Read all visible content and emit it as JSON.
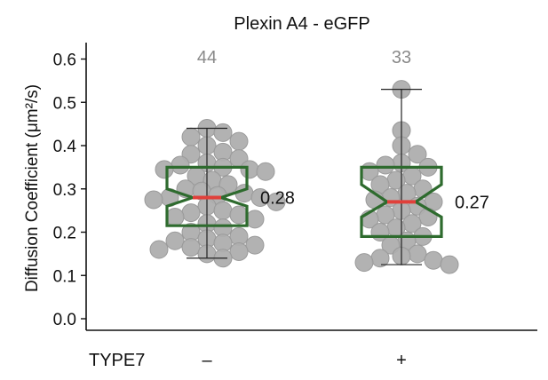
{
  "chart_data": {
    "type": "box",
    "title": "Plexin A4 - eGFP",
    "ylabel": "Diffusion Coefficient (μm²/s)",
    "xlabel": "TYPE7",
    "ylim": [
      0,
      0.65
    ],
    "yticks": [
      "0.0",
      "0.1",
      "0.2",
      "0.3",
      "0.4",
      "0.5",
      "0.6"
    ],
    "ytick_values": [
      0,
      0.1,
      0.2,
      0.3,
      0.4,
      0.5,
      0.6
    ],
    "grid": false,
    "categories": [
      "–",
      "+"
    ],
    "groups": [
      {
        "category": "–",
        "n_label": "44",
        "median_label": "0.28",
        "median": 0.28,
        "q1": 0.215,
        "q3": 0.35,
        "notch_low": 0.26,
        "notch_high": 0.3,
        "whisker_low": 0.14,
        "whisker_high": 0.44,
        "points": [
          0.44,
          0.43,
          0.42,
          0.41,
          0.4,
          0.385,
          0.38,
          0.37,
          0.36,
          0.355,
          0.35,
          0.345,
          0.345,
          0.34,
          0.33,
          0.32,
          0.31,
          0.3,
          0.295,
          0.29,
          0.285,
          0.28,
          0.28,
          0.275,
          0.27,
          0.26,
          0.25,
          0.245,
          0.24,
          0.235,
          0.23,
          0.22,
          0.21,
          0.2,
          0.19,
          0.185,
          0.18,
          0.175,
          0.17,
          0.165,
          0.16,
          0.155,
          0.15,
          0.14
        ]
      },
      {
        "category": "+",
        "n_label": "33",
        "median_label": "0.27",
        "median": 0.27,
        "q1": 0.19,
        "q3": 0.35,
        "notch_low": 0.235,
        "notch_high": 0.31,
        "whisker_low": 0.125,
        "whisker_high": 0.53,
        "points": [
          0.53,
          0.435,
          0.4,
          0.38,
          0.36,
          0.355,
          0.35,
          0.34,
          0.33,
          0.32,
          0.31,
          0.3,
          0.29,
          0.28,
          0.275,
          0.27,
          0.26,
          0.25,
          0.24,
          0.235,
          0.23,
          0.22,
          0.21,
          0.2,
          0.19,
          0.18,
          0.17,
          0.15,
          0.145,
          0.14,
          0.135,
          0.13,
          0.125
        ]
      }
    ],
    "colors": {
      "point_fill": "#aeaeae",
      "point_stroke": "#9a9a9a",
      "box": "#2e6b2e",
      "median": "#e0403a",
      "whisker": "#222222",
      "count_text": "#8a8a8a"
    }
  }
}
